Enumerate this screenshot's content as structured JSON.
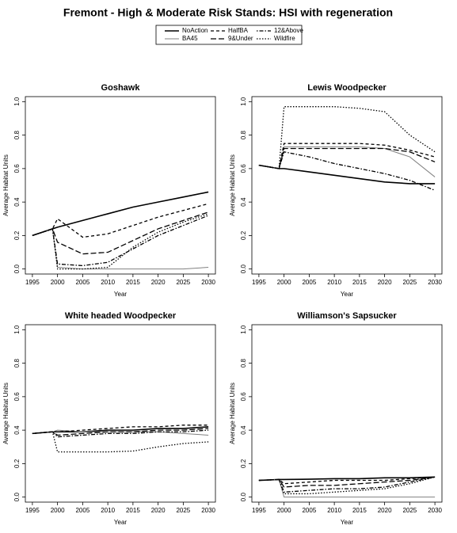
{
  "title": "Fremont  - High & Moderate Risk Stands: HSI with regeneration",
  "chart_data": [
    {
      "type": "line",
      "title": "Goshawk",
      "x_label": "Year",
      "y_label": "Average Habitat Units",
      "x": [
        1995,
        1999,
        2000,
        2005,
        2010,
        2015,
        2020,
        2025,
        2030
      ],
      "xlim": [
        1993.6,
        2031.4
      ],
      "xticks": [
        1995,
        2000,
        2005,
        2010,
        2015,
        2020,
        2025,
        2030
      ],
      "ylim": [
        -0.03,
        1.03
      ],
      "yticks": [
        {
          "value": 0,
          "label": "0.0"
        },
        0.2,
        0.4,
        0.6,
        0.8,
        {
          "value": 1,
          "label": "1.0"
        }
      ],
      "series": [
        {
          "name": "NoAction",
          "color": "#000000",
          "linestyle": "solid",
          "values": [
            0.2,
            0.24,
            0.25,
            0.29,
            0.33,
            0.37,
            0.4,
            0.43,
            0.46
          ]
        },
        {
          "name": "BA45",
          "color": "#808080",
          "linestyle": "solid",
          "values": [
            0.2,
            0.24,
            0.01,
            0.0,
            0.0,
            0.0,
            0.0,
            0.0,
            0.01
          ]
        },
        {
          "name": "HalfBA",
          "color": "#000000",
          "linestyle": "dashed",
          "values": [
            0.2,
            0.24,
            0.3,
            0.19,
            0.21,
            0.26,
            0.31,
            0.35,
            0.39
          ]
        },
        {
          "name": "9&Under",
          "color": "#000000",
          "linestyle": "longdash",
          "values": [
            0.2,
            0.24,
            0.16,
            0.09,
            0.1,
            0.17,
            0.24,
            0.29,
            0.34
          ]
        },
        {
          "name": "12&Above",
          "color": "#000000",
          "linestyle": "dotdash",
          "values": [
            0.2,
            0.24,
            0.03,
            0.02,
            0.04,
            0.12,
            0.2,
            0.26,
            0.32
          ]
        },
        {
          "name": "Wildfire",
          "color": "#000000",
          "linestyle": "twodash",
          "values": [
            0.2,
            0.24,
            0.0,
            0.0,
            0.01,
            0.13,
            0.22,
            0.28,
            0.33
          ]
        }
      ]
    },
    {
      "type": "line",
      "title": "Lewis Woodpecker",
      "x_label": "Year",
      "y_label": "Average Habitat Units",
      "x": [
        1995,
        1999,
        2000,
        2005,
        2010,
        2015,
        2020,
        2025,
        2030
      ],
      "xlim": [
        1993.6,
        2031.4
      ],
      "xticks": [
        1995,
        2000,
        2005,
        2010,
        2015,
        2020,
        2025,
        2030
      ],
      "ylim": [
        -0.03,
        1.03
      ],
      "yticks": [
        {
          "value": 0,
          "label": "0.0"
        },
        0.2,
        0.4,
        0.6,
        0.8,
        {
          "value": 1,
          "label": "1.0"
        }
      ],
      "series": [
        {
          "name": "NoAction",
          "color": "#000000",
          "linestyle": "solid",
          "values": [
            0.62,
            0.6,
            0.6,
            0.58,
            0.56,
            0.54,
            0.52,
            0.51,
            0.51
          ]
        },
        {
          "name": "BA45",
          "color": "#808080",
          "linestyle": "solid",
          "values": [
            0.62,
            0.6,
            0.73,
            0.73,
            0.73,
            0.73,
            0.72,
            0.67,
            0.55
          ]
        },
        {
          "name": "HalfBA",
          "color": "#000000",
          "linestyle": "dashed",
          "values": [
            0.62,
            0.6,
            0.75,
            0.75,
            0.75,
            0.75,
            0.74,
            0.71,
            0.67
          ]
        },
        {
          "name": "9&Under",
          "color": "#000000",
          "linestyle": "longdash",
          "values": [
            0.62,
            0.6,
            0.72,
            0.72,
            0.72,
            0.72,
            0.72,
            0.7,
            0.64
          ]
        },
        {
          "name": "12&Above",
          "color": "#000000",
          "linestyle": "dotdash",
          "values": [
            0.62,
            0.6,
            0.7,
            0.67,
            0.63,
            0.6,
            0.57,
            0.53,
            0.47
          ]
        },
        {
          "name": "Wildfire",
          "color": "#000000",
          "linestyle": "twodash",
          "values": [
            0.62,
            0.6,
            0.97,
            0.97,
            0.97,
            0.96,
            0.94,
            0.8,
            0.7
          ]
        }
      ]
    },
    {
      "type": "line",
      "title": "White headed Woodpecker",
      "x_label": "Year",
      "y_label": "Average Habitat Units",
      "x": [
        1995,
        1999,
        2000,
        2005,
        2010,
        2015,
        2020,
        2025,
        2030
      ],
      "xlim": [
        1993.6,
        2031.4
      ],
      "xticks": [
        1995,
        2000,
        2005,
        2010,
        2015,
        2020,
        2025,
        2030
      ],
      "ylim": [
        -0.03,
        1.03
      ],
      "yticks": [
        {
          "value": 0,
          "label": "0.0"
        },
        0.2,
        0.4,
        0.6,
        0.8,
        {
          "value": 1,
          "label": "1.0"
        }
      ],
      "series": [
        {
          "name": "NoAction",
          "color": "#000000",
          "linestyle": "solid",
          "values": [
            0.38,
            0.39,
            0.39,
            0.39,
            0.4,
            0.4,
            0.41,
            0.41,
            0.42
          ]
        },
        {
          "name": "BA45",
          "color": "#808080",
          "linestyle": "solid",
          "values": [
            0.38,
            0.39,
            0.4,
            0.39,
            0.39,
            0.39,
            0.39,
            0.38,
            0.37
          ]
        },
        {
          "name": "HalfBA",
          "color": "#000000",
          "linestyle": "dashed",
          "values": [
            0.38,
            0.39,
            0.39,
            0.4,
            0.41,
            0.42,
            0.42,
            0.43,
            0.43
          ]
        },
        {
          "name": "9&Under",
          "color": "#000000",
          "linestyle": "longdash",
          "values": [
            0.38,
            0.39,
            0.37,
            0.38,
            0.39,
            0.39,
            0.4,
            0.4,
            0.41
          ]
        },
        {
          "name": "12&Above",
          "color": "#000000",
          "linestyle": "dotdash",
          "values": [
            0.38,
            0.39,
            0.36,
            0.37,
            0.38,
            0.38,
            0.39,
            0.39,
            0.4
          ]
        },
        {
          "name": "Wildfire",
          "color": "#000000",
          "linestyle": "twodash",
          "values": [
            0.38,
            0.39,
            0.27,
            0.27,
            0.27,
            0.275,
            0.3,
            0.32,
            0.33
          ]
        }
      ]
    },
    {
      "type": "line",
      "title": "Williamson's Sapsucker",
      "x_label": "Year",
      "y_label": "Average Habitat Units",
      "x": [
        1995,
        1999,
        2000,
        2005,
        2010,
        2015,
        2020,
        2025,
        2030
      ],
      "xlim": [
        1993.6,
        2031.4
      ],
      "xticks": [
        1995,
        2000,
        2005,
        2010,
        2015,
        2020,
        2025,
        2030
      ],
      "ylim": [
        -0.03,
        1.03
      ],
      "yticks": [
        {
          "value": 0,
          "label": "0.0"
        },
        0.2,
        0.4,
        0.6,
        0.8,
        {
          "value": 1,
          "label": "1.0"
        }
      ],
      "series": [
        {
          "name": "NoAction",
          "color": "#000000",
          "linestyle": "solid",
          "values": [
            0.1,
            0.105,
            0.105,
            0.107,
            0.11,
            0.11,
            0.115,
            0.115,
            0.12
          ]
        },
        {
          "name": "BA45",
          "color": "#808080",
          "linestyle": "solid",
          "values": [
            0.1,
            0.105,
            0.0,
            0.0,
            0.0,
            0.0,
            0.0,
            0.0,
            0.0
          ]
        },
        {
          "name": "HalfBA",
          "color": "#000000",
          "linestyle": "dashed",
          "values": [
            0.1,
            0.105,
            0.08,
            0.09,
            0.1,
            0.1,
            0.1,
            0.11,
            0.12
          ]
        },
        {
          "name": "9&Under",
          "color": "#000000",
          "linestyle": "longdash",
          "values": [
            0.1,
            0.105,
            0.06,
            0.07,
            0.07,
            0.08,
            0.09,
            0.1,
            0.12
          ]
        },
        {
          "name": "12&Above",
          "color": "#000000",
          "linestyle": "dotdash",
          "values": [
            0.1,
            0.105,
            0.03,
            0.04,
            0.05,
            0.05,
            0.06,
            0.09,
            0.12
          ]
        },
        {
          "name": "Wildfire",
          "color": "#000000",
          "linestyle": "twodash",
          "values": [
            0.1,
            0.105,
            0.02,
            0.02,
            0.03,
            0.04,
            0.05,
            0.08,
            0.12
          ]
        }
      ]
    }
  ]
}
